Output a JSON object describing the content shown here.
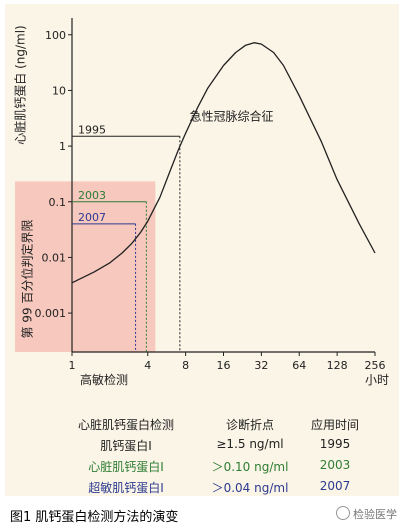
{
  "chart_data": {
    "type": "line",
    "ylabel": "心脏肌钙蛋白 (ng/ml)",
    "xlabel": "小时",
    "x_scale": "log2",
    "y_scale": "log10",
    "xlim": [
      1,
      256
    ],
    "ylim": [
      0.0002,
      200
    ],
    "x_ticks": [
      {
        "value": 1,
        "label": "1"
      },
      {
        "value": 4,
        "label": "4"
      },
      {
        "value": 8,
        "label": "8"
      },
      {
        "value": 16,
        "label": "16"
      },
      {
        "value": 32,
        "label": "32"
      },
      {
        "value": 64,
        "label": "64"
      },
      {
        "value": 128,
        "label": "128"
      },
      {
        "value": 256,
        "label": "256"
      }
    ],
    "y_ticks": [
      {
        "value": 0.001,
        "label": "0.001"
      },
      {
        "value": 0.01,
        "label": "0.01"
      },
      {
        "value": 0.1,
        "label": "0.1"
      },
      {
        "value": 1,
        "label": "1"
      },
      {
        "value": 10,
        "label": "10"
      },
      {
        "value": 100,
        "label": "100"
      }
    ],
    "series": [
      {
        "name": "急性冠脉综合征",
        "color": "#222222",
        "x": [
          1,
          1.5,
          2,
          2.5,
          3,
          3.5,
          4,
          5,
          6,
          7,
          8,
          10,
          12,
          16,
          20,
          24,
          28,
          32,
          40,
          48,
          64,
          96,
          128,
          192,
          256
        ],
        "y": [
          0.0035,
          0.0055,
          0.008,
          0.012,
          0.018,
          0.028,
          0.045,
          0.12,
          0.35,
          0.85,
          1.7,
          5.0,
          11,
          28,
          48,
          65,
          72,
          68,
          48,
          28,
          8,
          1.2,
          0.25,
          0.04,
          0.012
        ]
      }
    ],
    "region": {
      "name": "高敏检测",
      "x_range": [
        1,
        4.6
      ],
      "y_range": [
        0.0002,
        0.13
      ],
      "color": "#f4b8b0"
    },
    "thresholds": [
      {
        "year": "1995",
        "value": 1.5,
        "color": "#222222",
        "x_at": 7.2
      },
      {
        "year": "2003",
        "value": 0.1,
        "color": "#2e7d32",
        "x_at": 3.9
      },
      {
        "year": "2007",
        "value": 0.04,
        "color": "#2b3a8f",
        "x_at": 3.2
      }
    ],
    "threshold_axis_label": "第 99 百分位判定界限",
    "annotation": "急性冠脉综合征"
  },
  "table": {
    "headers": [
      "心脏肌钙蛋白检测",
      "诊断折点",
      "应用时间"
    ],
    "rows": [
      {
        "name": "肌钙蛋白Ⅰ",
        "cutoff": "≥1.5 ng/ml",
        "year": "1995",
        "color": "#222222"
      },
      {
        "name": "心脏肌钙蛋白Ⅰ",
        "cutoff": "＞0.10 ng/ml",
        "year": "2003",
        "color": "#2e7d32"
      },
      {
        "name": "超敏肌钙蛋白Ⅰ",
        "cutoff": "＞0.04 ng/ml",
        "year": "2007",
        "color": "#2b3a8f"
      }
    ]
  },
  "caption": "图1  肌钙蛋白检测方法的演变",
  "watermark": "检验医学"
}
